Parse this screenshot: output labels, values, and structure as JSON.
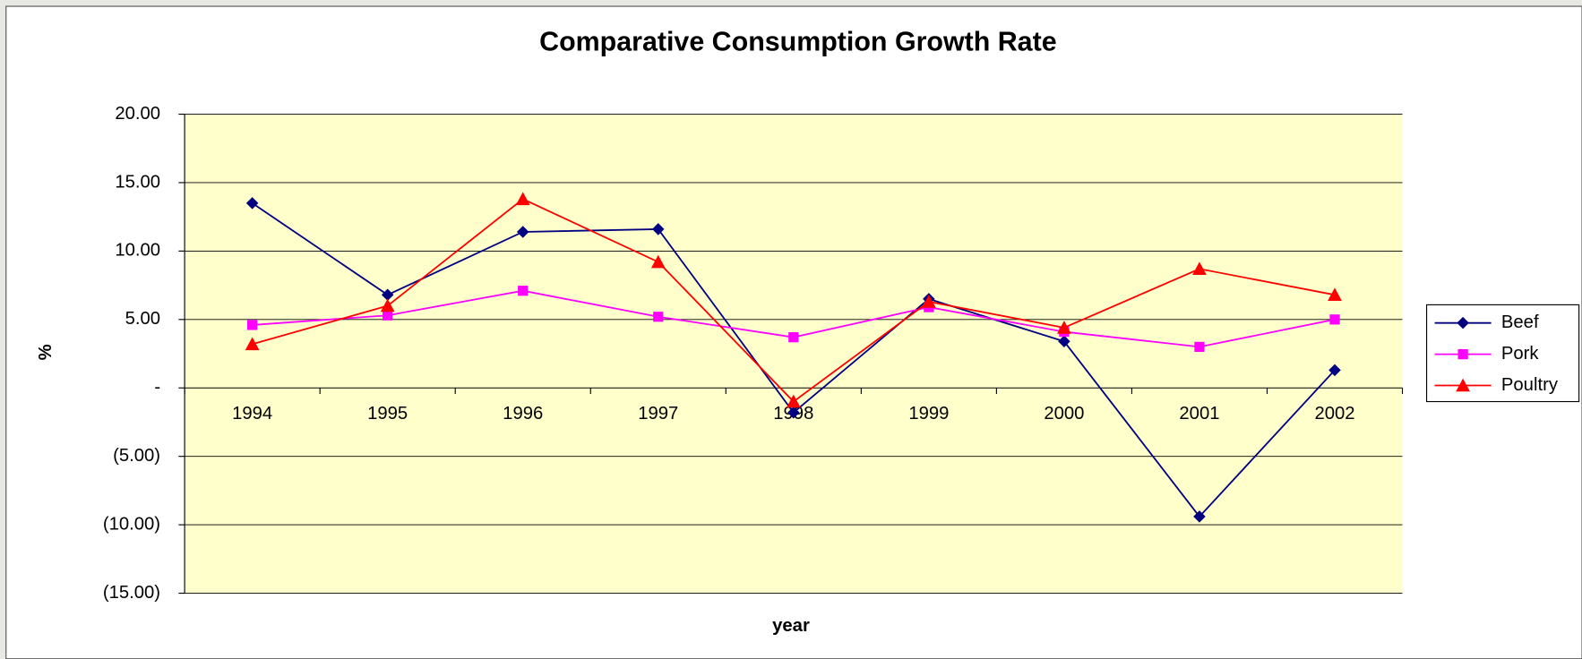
{
  "chart_data": {
    "type": "line",
    "title": "Comparative Consumption Growth Rate",
    "x_label": "year",
    "y_label": "%",
    "categories": [
      "1994",
      "1995",
      "1996",
      "1997",
      "1998",
      "1999",
      "2000",
      "2001",
      "2002"
    ],
    "series": [
      {
        "name": "Beef",
        "color": "#000080",
        "marker": "diamond",
        "values": [
          13.5,
          6.8,
          11.4,
          11.6,
          -1.8,
          6.5,
          3.4,
          -9.4,
          1.3
        ]
      },
      {
        "name": "Pork",
        "color": "#ff00ff",
        "marker": "square",
        "values": [
          4.6,
          5.3,
          7.1,
          5.2,
          3.7,
          5.9,
          4.1,
          3.0,
          5.0
        ]
      },
      {
        "name": "Poultry",
        "color": "#ff0000",
        "marker": "triangle",
        "values": [
          3.2,
          6.0,
          13.8,
          9.2,
          -1.0,
          6.3,
          4.4,
          8.7,
          6.8
        ]
      }
    ],
    "ylim": [
      -15,
      20
    ],
    "yticks": [
      {
        "value": -15,
        "label": "(15.00)"
      },
      {
        "value": -10,
        "label": "(10.00)"
      },
      {
        "value": -5,
        "label": "(5.00)"
      },
      {
        "value": 0,
        "label": "-"
      },
      {
        "value": 5,
        "label": "5.00"
      },
      {
        "value": 10,
        "label": "10.00"
      },
      {
        "value": 15,
        "label": "15.00"
      },
      {
        "value": 20,
        "label": "20.00"
      }
    ],
    "grid": true,
    "plot_background": "#ffffcc",
    "legend": "right"
  }
}
